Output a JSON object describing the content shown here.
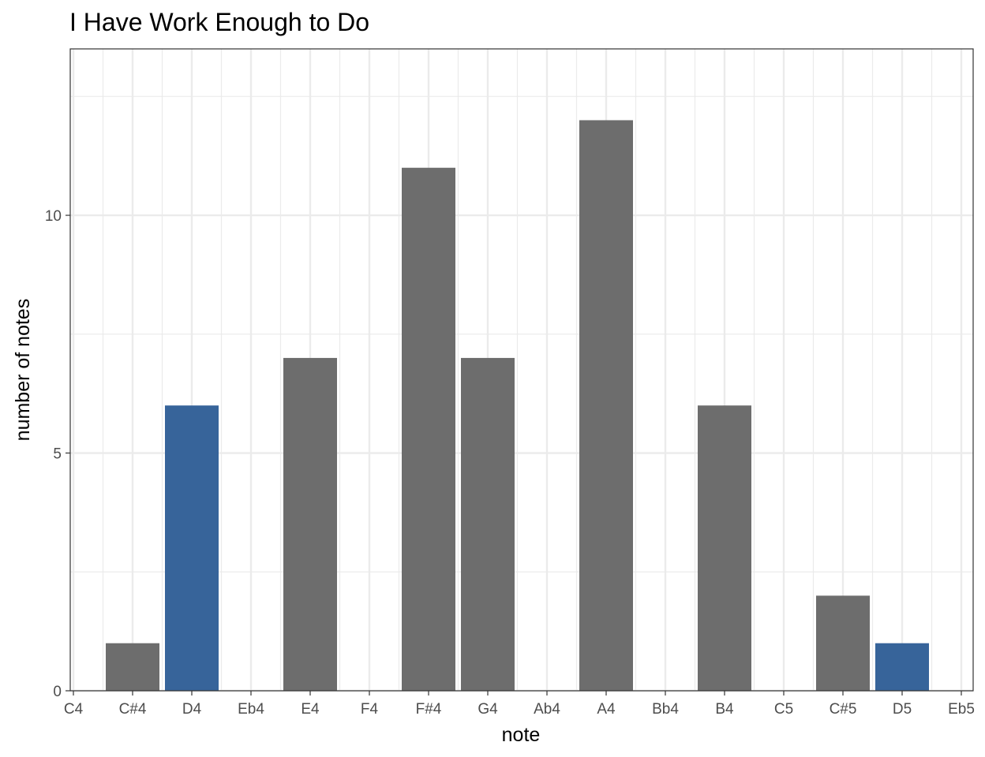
{
  "chart_data": {
    "type": "bar",
    "title": "I Have Work Enough to Do",
    "xlabel": "note",
    "ylabel": "number of notes",
    "categories": [
      "C4",
      "C#4",
      "D4",
      "Eb4",
      "E4",
      "F4",
      "F#4",
      "G4",
      "Ab4",
      "A4",
      "Bb4",
      "B4",
      "C5",
      "C#5",
      "D5",
      "Eb5"
    ],
    "values": [
      0,
      1,
      6,
      0,
      7,
      0,
      11,
      7,
      0,
      12,
      0,
      6,
      0,
      2,
      1,
      0
    ],
    "highlighted": [
      "D4",
      "D5"
    ],
    "ylim": [
      0,
      13.5
    ],
    "yticks": [
      0,
      5,
      10
    ],
    "grid": true,
    "colors": {
      "bar": "#6d6d6d",
      "highlight": "#37649a",
      "grid": "#ebebeb",
      "panel_border": "#333333"
    }
  }
}
